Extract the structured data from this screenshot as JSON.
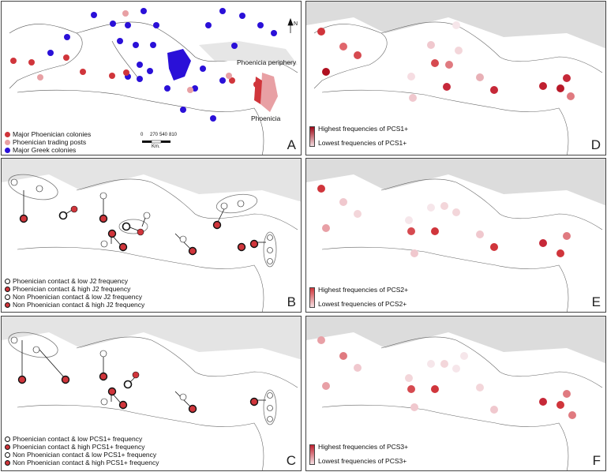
{
  "panels": {
    "A": {
      "letter": "A",
      "legend": [
        "Major Phoenician colonies",
        "Phoenician trading posts",
        "Major Greek colonies"
      ],
      "labels": {
        "periphery": "Phoenicia periphery",
        "phoenicia": "Phoenicia"
      },
      "scale": {
        "ticks": [
          "0",
          "270",
          "540",
          "810"
        ],
        "unit": "Km."
      },
      "north": "N"
    },
    "B": {
      "letter": "B",
      "legend": [
        "Phoenician contact & low J2 frequency",
        "Phoenician contact & high J2 frequency",
        "Non Phoenician contact & low J2 frequency",
        "Non Phoenician contact & high J2 frequency"
      ]
    },
    "C": {
      "letter": "C",
      "legend": [
        "Phoenician contact & low PCS1+ frequency",
        "Phoenician contact & high PCS1+ frequency",
        "Non Phoenician contact & low PCS1+ frequency",
        "Non Phoenician contact & high PCS1+ frequency"
      ]
    },
    "D": {
      "letter": "D",
      "high": "Highest frequencies of PCS1+",
      "low": "Lowest frequencies of PCS1+"
    },
    "E": {
      "letter": "E",
      "high": "Highest frequencies of PCS2+",
      "low": "Lowest frequencies of PCS2+"
    },
    "F": {
      "letter": "F",
      "high": "Highest frequencies of PCS3+",
      "low": "Lowest frequencies of PCS3+"
    }
  },
  "colors": {
    "major_phoenician": "#d0353b",
    "trading_post": "#e8a0a4",
    "greek": "#2a10d8",
    "land_gray": "#cfcfcf",
    "pcs_high": "#b01020",
    "pcs_low": "#f6e6ea"
  }
}
